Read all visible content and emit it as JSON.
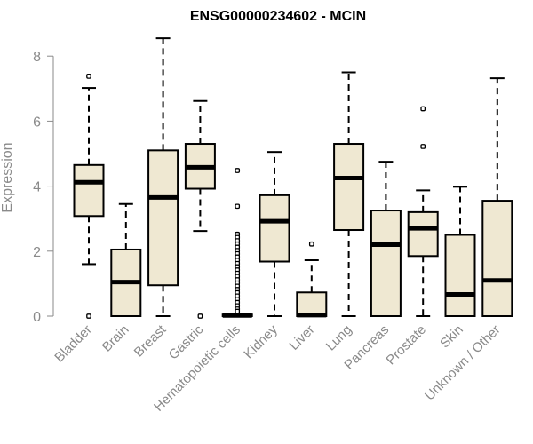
{
  "chart_data": {
    "type": "boxplot",
    "title": "ENSG00000234602 - MCIN",
    "ylabel": "Expression",
    "xlabel": "",
    "ylim": [
      0,
      8.6
    ],
    "yticks": [
      0,
      2,
      4,
      6,
      8
    ],
    "grid": false,
    "box_fill": "#efe8d2",
    "box_stroke": "#000000",
    "axis_color": "#8a8a8a",
    "categories": [
      "Bladder",
      "Brain",
      "Breast",
      "Gastric",
      "Hematopoietic cells",
      "Kidney",
      "Liver",
      "Lung",
      "Pancreas",
      "Prostate",
      "Skin",
      "Unknown / Other"
    ],
    "boxes": [
      {
        "whisker_low": 1.6,
        "q1": 3.08,
        "median": 4.12,
        "q3": 4.65,
        "whisker_high": 7.02,
        "outliers": [
          7.38,
          0.0
        ]
      },
      {
        "whisker_low": 0.0,
        "q1": 0.0,
        "median": 1.05,
        "q3": 2.05,
        "whisker_high": 3.45,
        "outliers": []
      },
      {
        "whisker_low": 0.0,
        "q1": 0.95,
        "median": 3.65,
        "q3": 5.1,
        "whisker_high": 8.55,
        "outliers": []
      },
      {
        "whisker_low": 2.62,
        "q1": 3.92,
        "median": 4.58,
        "q3": 5.3,
        "whisker_high": 6.62,
        "outliers": [
          0.0
        ]
      },
      {
        "whisker_low": 0.0,
        "q1": 0.0,
        "median": 0.02,
        "q3": 0.05,
        "whisker_high": 0.08,
        "outliers": [
          4.48,
          3.38,
          2.52,
          2.42,
          2.32,
          2.22,
          2.12,
          2.02,
          1.92,
          1.82,
          1.72,
          1.62,
          1.52,
          1.42,
          1.32,
          1.22,
          1.12,
          1.02,
          0.92,
          0.82,
          0.72,
          0.62,
          0.52,
          0.42,
          0.32,
          0.22,
          0.15
        ]
      },
      {
        "whisker_low": 0.0,
        "q1": 1.68,
        "median": 2.92,
        "q3": 3.72,
        "whisker_high": 5.05,
        "outliers": []
      },
      {
        "whisker_low": 0.0,
        "q1": 0.0,
        "median": 0.03,
        "q3": 0.73,
        "whisker_high": 1.72,
        "outliers": [
          2.22
        ]
      },
      {
        "whisker_low": 0.0,
        "q1": 2.65,
        "median": 4.25,
        "q3": 5.3,
        "whisker_high": 7.5,
        "outliers": []
      },
      {
        "whisker_low": 0.0,
        "q1": 0.0,
        "median": 2.2,
        "q3": 3.25,
        "whisker_high": 4.75,
        "outliers": []
      },
      {
        "whisker_low": 0.0,
        "q1": 1.85,
        "median": 2.7,
        "q3": 3.2,
        "whisker_high": 3.87,
        "outliers": [
          6.38,
          5.22
        ]
      },
      {
        "whisker_low": 0.0,
        "q1": 0.0,
        "median": 0.67,
        "q3": 2.5,
        "whisker_high": 3.98,
        "outliers": []
      },
      {
        "whisker_low": 0.0,
        "q1": 0.0,
        "median": 1.1,
        "q3": 3.55,
        "whisker_high": 7.32,
        "outliers": []
      }
    ]
  }
}
